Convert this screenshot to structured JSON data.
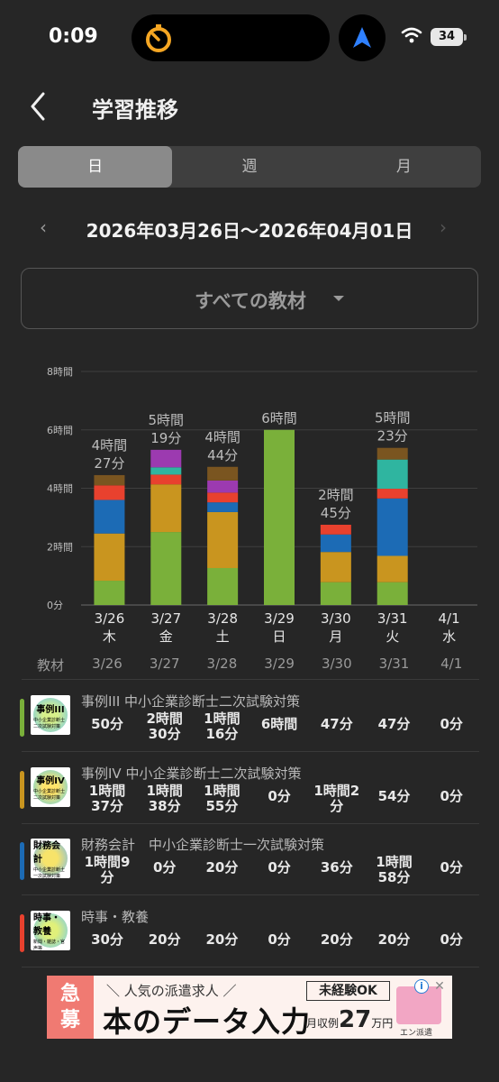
{
  "status": {
    "time": "0:09",
    "battery": "34"
  },
  "header": {
    "title": "学習推移"
  },
  "tabs": [
    "日",
    "週",
    "月"
  ],
  "date_range": "2026年03月26日〜2026年04月01日",
  "filter": {
    "label": "すべての教材"
  },
  "colors": {
    "jirei3": "#7ab03a",
    "jirei4": "#c9951f",
    "zaimu": "#1c6bb5",
    "jiji": "#e8412e",
    "teal": "#2fb5a0",
    "purple": "#9c3ab0",
    "brown": "#7a5520"
  },
  "chart_data": {
    "type": "bar",
    "stacked": true,
    "y_ticks": [
      "0分",
      "2時間",
      "4時間",
      "6時間",
      "8時間"
    ],
    "ylim_minutes": [
      0,
      480
    ],
    "days": [
      {
        "date": "3/26",
        "weekday": "木",
        "total_label": [
          "4時間",
          "27分"
        ],
        "total_minutes": 267
      },
      {
        "date": "3/27",
        "weekday": "金",
        "total_label": [
          "5時間",
          "19分"
        ],
        "total_minutes": 319
      },
      {
        "date": "3/28",
        "weekday": "土",
        "total_label": [
          "4時間",
          "44分"
        ],
        "total_minutes": 284
      },
      {
        "date": "3/29",
        "weekday": "日",
        "total_label": [
          "6時間"
        ],
        "total_minutes": 360
      },
      {
        "date": "3/30",
        "weekday": "月",
        "total_label": [
          "2時間",
          "45分"
        ],
        "total_minutes": 165
      },
      {
        "date": "3/31",
        "weekday": "火",
        "total_label": [
          "5時間",
          "23分"
        ],
        "total_minutes": 323
      },
      {
        "date": "4/1",
        "weekday": "水",
        "total_label": [],
        "total_minutes": 0
      }
    ],
    "series": [
      {
        "color": "#7ab03a",
        "values": [
          50,
          150,
          76,
          360,
          47,
          47,
          0
        ]
      },
      {
        "color": "#c9951f",
        "values": [
          97,
          98,
          115,
          0,
          62,
          54,
          0
        ]
      },
      {
        "color": "#1c6bb5",
        "values": [
          69,
          0,
          20,
          0,
          36,
          118,
          0
        ]
      },
      {
        "color": "#e8412e",
        "values": [
          30,
          20,
          20,
          0,
          20,
          20,
          0
        ]
      },
      {
        "color": "#2fb5a0",
        "values": [
          0,
          15,
          0,
          0,
          0,
          60,
          0
        ]
      },
      {
        "color": "#9c3ab0",
        "values": [
          0,
          36,
          25,
          0,
          0,
          0,
          0
        ]
      },
      {
        "color": "#7a5520",
        "values": [
          21,
          0,
          28,
          0,
          0,
          24,
          0
        ]
      }
    ]
  },
  "table": {
    "header_label": "教材",
    "columns": [
      "3/26",
      "3/27",
      "3/28",
      "3/29",
      "3/30",
      "3/31",
      "4/1"
    ],
    "rows": [
      {
        "name": "事例III 中小企業診断士二次試験対策",
        "logo": "事例III",
        "logo_sub": "中小企業診断士 二次試験対策",
        "color": "#7ab03a",
        "values": [
          "50分",
          "2時間\n30分",
          "1時間\n16分",
          "6時間",
          "47分",
          "47分",
          "0分"
        ]
      },
      {
        "name": "事例IV 中小企業診断士二次試験対策",
        "logo": "事例IV",
        "logo_sub": "中小企業診断士 二次試験対策",
        "color": "#c9951f",
        "values": [
          "1時間\n37分",
          "1時間\n38分",
          "1時間\n55分",
          "0分",
          "1時間2\n分",
          "54分",
          "0分"
        ]
      },
      {
        "name": "財務会計　中小企業診断士一次試験対策",
        "logo": "財務会計",
        "logo_sub": "中小企業診断士 一次試験対策",
        "color": "#1c6bb5",
        "values": [
          "1時間9\n分",
          "0分",
          "20分",
          "0分",
          "36分",
          "1時間\n58分",
          "0分"
        ]
      },
      {
        "name": "時事・教養",
        "logo": "時事・教養",
        "logo_sub": "新聞・雑誌・官声等",
        "color": "#e8412e",
        "values": [
          "30分",
          "20分",
          "20分",
          "0分",
          "20分",
          "20分",
          "0分"
        ]
      }
    ]
  },
  "ad": {
    "left_text": "急\n募",
    "top_text": "＼ 人気の派遣求人 ／",
    "main_text": "本のデータ入力",
    "badge": "未経験OK",
    "salary_prefix": "月収例",
    "salary_value": "27",
    "salary_suffix": "万円",
    "brand": "エン派遣"
  }
}
